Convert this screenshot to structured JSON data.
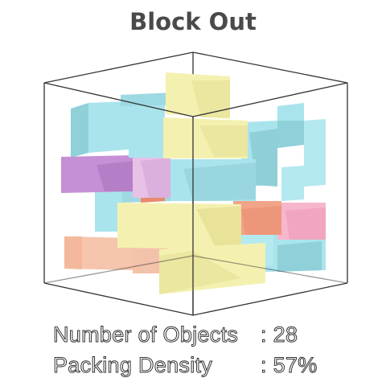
{
  "game": {
    "title": "Block Out",
    "stats": {
      "objects_label": "Number of Objects",
      "objects_value": "28",
      "density_label": "Packing Density",
      "density_value": "57%",
      "separator": ":"
    },
    "colors": {
      "cyan": "#a9e4ec",
      "yellow": "#f4f1b0",
      "purple": "#c690d6",
      "peach": "#f6c5ad",
      "orange": "#f2a48a",
      "pink": "#f6b6cc",
      "container_edge": "#333333",
      "title": "#4a4a4a"
    }
  }
}
